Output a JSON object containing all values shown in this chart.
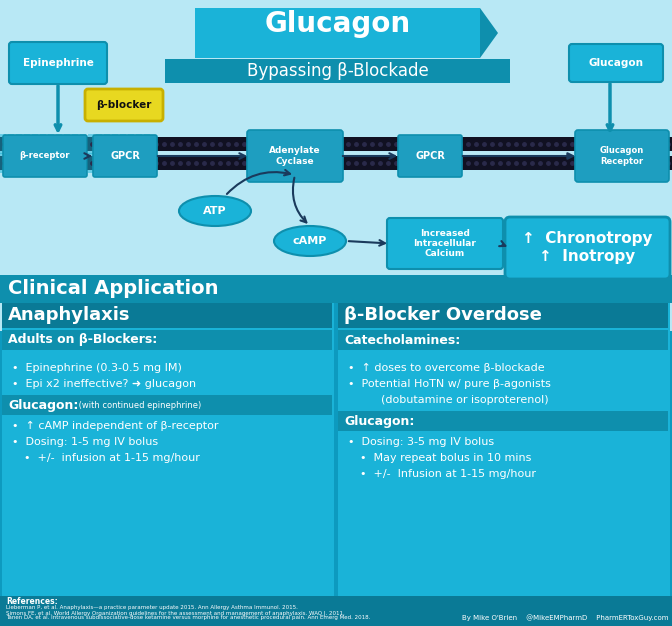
{
  "title": "Glucagon",
  "subtitle": "Bypassing β-Blockade",
  "bg_light": "#b8e8f5",
  "bg_teal": "#1ab3d8",
  "bg_dark_teal": "#0e8fad",
  "bg_darker": "#0a7a96",
  "bg_clinical": "#0d9abf",
  "white": "#ffffff",
  "yellow": "#e8d820",
  "yellow_edge": "#c8b000",
  "navy": "#1a3a5c",
  "mem_dark": "#111122",
  "mem_dot": "#2a2a4a",
  "clinical_title": "Clinical Application",
  "left_title": "Anaphylaxis",
  "right_title": "β-Blocker Overdose",
  "left_subhead1": "Adults on β-Blockers:",
  "left_bullets1": [
    "Epinephrine (0.3-0.5 mg IM)",
    "Epi x2 ineffective? ➜ glucagon"
  ],
  "left_subhead2_bold": "Glucagon:",
  "left_subhead2_small": " (with continued epinephrine)",
  "left_bullets2": [
    "↑ cAMP independent of β-receptor",
    "Dosing: 1-5 mg IV bolus",
    "+/-  infusion at 1-15 mg/hour"
  ],
  "left_bullet2_indent": [
    false,
    false,
    true
  ],
  "right_subhead1": "Catecholamines:",
  "right_bullets1": [
    "↑ doses to overcome β-blockade",
    "Potential HoTN w/ pure β-agonists",
    "   (dobutamine or isoproterenol)"
  ],
  "right_subhead2": "Glucagon:",
  "right_bullets2": [
    "Dosing: 3-5 mg IV bolus",
    "May repeat bolus in 10 mins",
    "+/-  Infusion at 1-15 mg/hour"
  ],
  "right_bullet2_indent": [
    false,
    true,
    true
  ],
  "diagram_labels": {
    "epinephrine": "Epinephrine",
    "glucagon_top": "Glucagon",
    "b_blocker": "β-blocker",
    "b_receptor": "β-receptor",
    "gpcr_left": "GPCR",
    "adenylate": "Adenylate\nCyclase",
    "gpcr_right": "GPCR",
    "glucagon_receptor": "Glucagon\nReceptor",
    "atp": "ATP",
    "camp": "cAMP",
    "calcium": "Increased\nIntracellular\nCalcium",
    "chrono_line1": "↑  Chronotropy",
    "chrono_line2": "↑  Inotropy"
  },
  "footer_left": "References:",
  "footer_ref1": "Lieberman P, et al. Anaphylaxis—a practice parameter update 2015. Ann Allergy Asthma Immunol. 2015.",
  "footer_ref2": "Simons FE, et al. World Allergy Organization guidelines for the assessment and management of anaphylaxis. WAO J. 2011.",
  "footer_ref3": "Tanen DA, et al. Intravenous subdissociative-dose ketamine versus morphine for anesthetic procedural pain. Ann Emerg Med. 2018.",
  "footer_right": "By Mike O'Brien    @MikeEMPharmD    PharmERToxGuy.com"
}
